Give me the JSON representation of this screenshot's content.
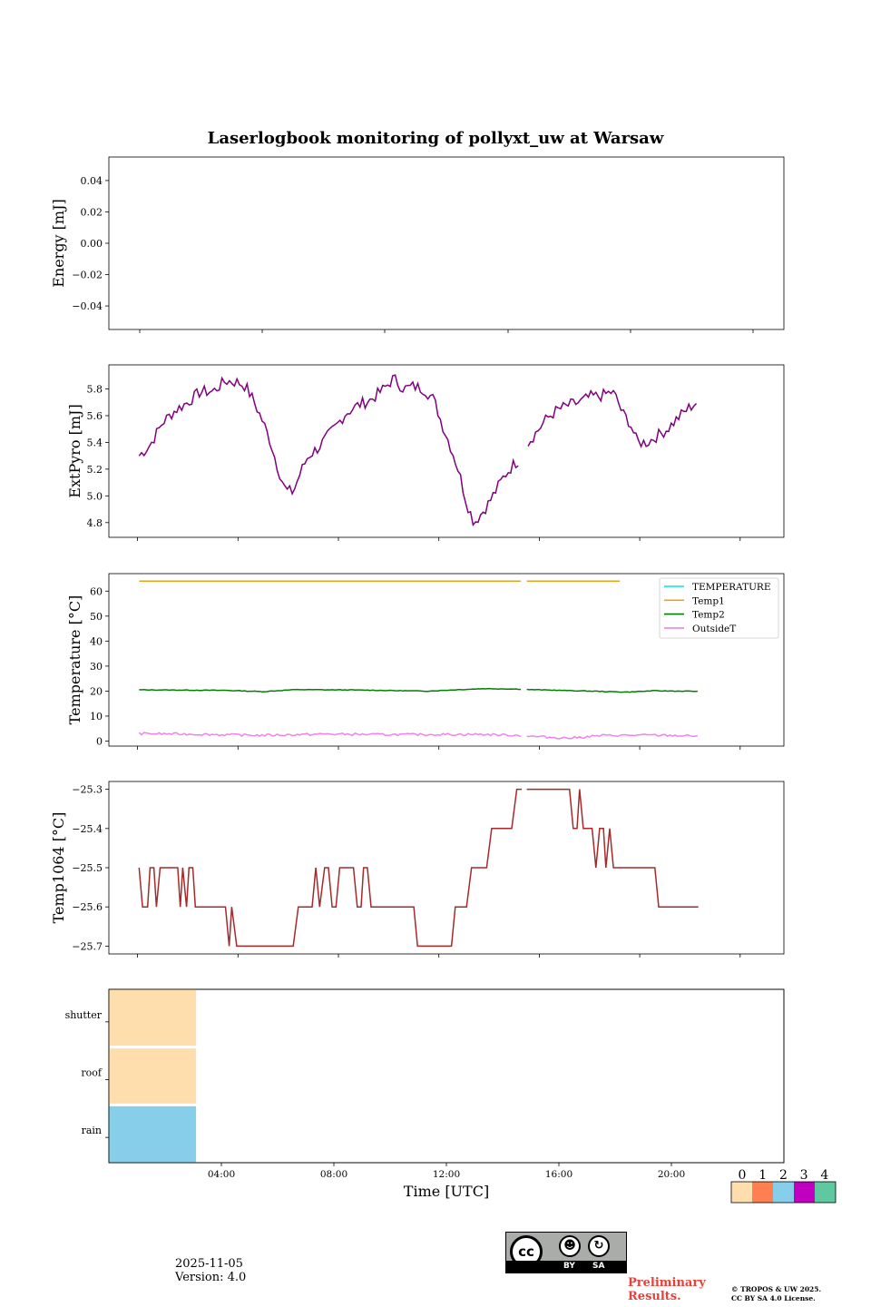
{
  "title": "Laserlogbook monitoring of pollyxt_uw at Warsaw",
  "footer": {
    "date": "2025-11-05",
    "version": "Version: 4.0",
    "preliminary": "Preliminary Results.",
    "copyright_line1": "© TROPOS & UW 2025.",
    "copyright_line2": "CC BY SA 4.0 License.",
    "license_icon": "cc-by-sa-icon",
    "license_cc": "cc",
    "license_by": "BY",
    "license_sa": "SA"
  },
  "chart_data": [
    {
      "type": "line",
      "id": "energy",
      "ylabel": "Energy [mJ]",
      "ylim": [
        -0.055,
        0.055
      ],
      "yticks": [
        0.04,
        0.02,
        0.0,
        -0.02,
        -0.04
      ],
      "ytick_labels": [
        "0.04",
        "0.02",
        "0.00",
        "−0.02",
        "−0.04"
      ],
      "series": []
    },
    {
      "type": "line",
      "id": "extpyro",
      "ylabel": "ExtPyro [mJ]",
      "ylim": [
        4.69,
        5.98
      ],
      "yticks": [
        5.8,
        5.6,
        5.4,
        5.2,
        5.0,
        4.8
      ],
      "ytick_labels": [
        "5.8",
        "5.6",
        "5.4",
        "5.2",
        "5.0",
        "4.8"
      ],
      "series": [
        {
          "name": "ExtPyro",
          "color": "#800080",
          "segments": [
            {
              "x_hours": [
                1.06,
                23.33
              ],
              "knots": [
                [
                  1.06,
                  5.3
                ],
                [
                  1.5,
                  5.38
                ],
                [
                  2.0,
                  5.55
                ],
                [
                  2.5,
                  5.64
                ],
                [
                  3.0,
                  5.7
                ],
                [
                  3.5,
                  5.78
                ],
                [
                  4.0,
                  5.78
                ],
                [
                  4.5,
                  5.86
                ],
                [
                  5.0,
                  5.85
                ],
                [
                  5.3,
                  5.82
                ],
                [
                  5.6,
                  5.72
                ],
                [
                  6.0,
                  5.55
                ],
                [
                  6.3,
                  5.4
                ],
                [
                  6.6,
                  5.2
                ],
                [
                  6.9,
                  5.04
                ],
                [
                  7.2,
                  5.03
                ],
                [
                  7.5,
                  5.18
                ],
                [
                  7.8,
                  5.3
                ],
                [
                  8.2,
                  5.36
                ],
                [
                  8.5,
                  5.43
                ],
                [
                  8.9,
                  5.52
                ],
                [
                  9.3,
                  5.62
                ],
                [
                  9.8,
                  5.68
                ],
                [
                  10.3,
                  5.72
                ],
                [
                  10.8,
                  5.8
                ],
                [
                  11.2,
                  5.88
                ],
                [
                  11.6,
                  5.8
                ],
                [
                  12.0,
                  5.82
                ],
                [
                  12.4,
                  5.8
                ],
                [
                  12.8,
                  5.72
                ],
                [
                  13.1,
                  5.55
                ],
                [
                  13.5,
                  5.35
                ],
                [
                  13.8,
                  5.18
                ],
                [
                  14.1,
                  4.95
                ],
                [
                  14.4,
                  4.8
                ],
                [
                  14.7,
                  4.87
                ],
                [
                  15.0,
                  4.95
                ],
                [
                  15.3,
                  5.05
                ],
                [
                  15.6,
                  5.15
                ],
                [
                  16.0,
                  5.24
                ],
                [
                  16.2,
                  5.27
                ]
              ]
            },
            {
              "knots": [
                [
                  16.55,
                  5.4
                ],
                [
                  16.9,
                  5.48
                ],
                [
                  17.3,
                  5.58
                ],
                [
                  17.7,
                  5.64
                ],
                [
                  18.2,
                  5.68
                ],
                [
                  18.6,
                  5.7
                ],
                [
                  19.0,
                  5.74
                ],
                [
                  19.5,
                  5.75
                ],
                [
                  19.9,
                  5.78
                ],
                [
                  20.1,
                  5.72
                ],
                [
                  20.3,
                  5.62
                ],
                [
                  20.6,
                  5.55
                ],
                [
                  20.9,
                  5.4
                ],
                [
                  21.3,
                  5.4
                ],
                [
                  21.7,
                  5.45
                ],
                [
                  22.1,
                  5.5
                ],
                [
                  22.5,
                  5.58
                ],
                [
                  22.9,
                  5.65
                ],
                [
                  23.33,
                  5.71
                ]
              ]
            }
          ]
        }
      ]
    },
    {
      "type": "line",
      "id": "temperature",
      "ylabel": "Temperature [°C]",
      "ylim": [
        -2,
        67
      ],
      "yticks": [
        60,
        50,
        40,
        30,
        20,
        10,
        0
      ],
      "ytick_labels": [
        "60",
        "50",
        "40",
        "30",
        "20",
        "10",
        "0"
      ],
      "legend_position": "top-right",
      "series": [
        {
          "name": "TEMPERATURE",
          "color": "#00e5e5",
          "values": []
        },
        {
          "name": "Temp1",
          "color": "#e8a317",
          "gap": [
            16.3,
            16.5
          ],
          "range": [
            1.06,
            20.2
          ],
          "value": 64
        },
        {
          "name": "Temp2",
          "color": "#007f00",
          "gap": [
            16.3,
            16.5
          ],
          "range": [
            1.06,
            23.33
          ],
          "knots": [
            [
              1.06,
              20.5
            ],
            [
              4.5,
              20.3
            ],
            [
              6.0,
              19.8
            ],
            [
              7.3,
              20.6
            ],
            [
              10.0,
              20.4
            ],
            [
              12.5,
              20.0
            ],
            [
              14.8,
              21.0
            ],
            [
              16.2,
              20.8
            ],
            [
              16.6,
              20.6
            ],
            [
              19.0,
              20.0
            ],
            [
              20.5,
              19.6
            ],
            [
              21.5,
              20.1
            ],
            [
              23.33,
              19.9
            ]
          ]
        },
        {
          "name": "OutsideT",
          "color": "#ee82ee",
          "gap": [
            16.3,
            16.5
          ],
          "range": [
            1.06,
            23.33
          ],
          "knots": [
            [
              1.06,
              3.0
            ],
            [
              3.0,
              2.8
            ],
            [
              6.0,
              2.3
            ],
            [
              8.5,
              2.8
            ],
            [
              11.0,
              2.6
            ],
            [
              14.5,
              2.7
            ],
            [
              16.2,
              2.3
            ],
            [
              16.6,
              1.9
            ],
            [
              18.2,
              1.2
            ],
            [
              19.5,
              2.2
            ],
            [
              21.5,
              2.4
            ],
            [
              23.33,
              2.0
            ]
          ]
        }
      ]
    },
    {
      "type": "line",
      "id": "temp1064",
      "ylabel": "Temp1064 [°C]",
      "ylim": [
        -25.72,
        -25.28
      ],
      "yticks": [
        -25.3,
        -25.4,
        -25.5,
        -25.6,
        -25.7
      ],
      "ytick_labels": [
        "−25.3",
        "−25.4",
        "−25.5",
        "−25.6",
        "−25.7"
      ],
      "series": [
        {
          "name": "Temp1064",
          "color": "#a52a2a",
          "segments": [
            {
              "knots": [
                [
                  1.06,
                  -25.5
                ],
                [
                  1.2,
                  -25.6
                ],
                [
                  1.4,
                  -25.6
                ],
                [
                  1.5,
                  -25.5
                ],
                [
                  1.65,
                  -25.5
                ],
                [
                  1.75,
                  -25.6
                ],
                [
                  1.9,
                  -25.5
                ],
                [
                  2.6,
                  -25.5
                ],
                [
                  2.7,
                  -25.6
                ],
                [
                  2.8,
                  -25.5
                ],
                [
                  2.95,
                  -25.6
                ],
                [
                  3.05,
                  -25.5
                ],
                [
                  3.2,
                  -25.5
                ],
                [
                  3.3,
                  -25.6
                ],
                [
                  4.5,
                  -25.6
                ],
                [
                  4.65,
                  -25.7
                ],
                [
                  4.75,
                  -25.6
                ],
                [
                  4.95,
                  -25.7
                ],
                [
                  7.2,
                  -25.7
                ],
                [
                  7.4,
                  -25.6
                ],
                [
                  7.95,
                  -25.6
                ],
                [
                  8.1,
                  -25.5
                ],
                [
                  8.25,
                  -25.6
                ],
                [
                  8.45,
                  -25.5
                ],
                [
                  8.6,
                  -25.5
                ],
                [
                  8.75,
                  -25.6
                ],
                [
                  8.9,
                  -25.6
                ],
                [
                  9.05,
                  -25.5
                ],
                [
                  9.6,
                  -25.5
                ],
                [
                  9.75,
                  -25.6
                ],
                [
                  9.9,
                  -25.6
                ],
                [
                  10.0,
                  -25.5
                ],
                [
                  10.15,
                  -25.5
                ],
                [
                  10.3,
                  -25.6
                ],
                [
                  12.0,
                  -25.6
                ],
                [
                  12.15,
                  -25.7
                ],
                [
                  13.5,
                  -25.7
                ],
                [
                  13.65,
                  -25.6
                ],
                [
                  14.1,
                  -25.6
                ],
                [
                  14.3,
                  -25.5
                ],
                [
                  14.9,
                  -25.5
                ],
                [
                  15.1,
                  -25.4
                ],
                [
                  15.9,
                  -25.4
                ],
                [
                  16.1,
                  -25.3
                ],
                [
                  16.3,
                  -25.3
                ]
              ]
            },
            {
              "knots": [
                [
                  16.5,
                  -25.3
                ],
                [
                  18.2,
                  -25.3
                ],
                [
                  18.35,
                  -25.4
                ],
                [
                  18.5,
                  -25.4
                ],
                [
                  18.6,
                  -25.3
                ],
                [
                  18.75,
                  -25.4
                ],
                [
                  19.1,
                  -25.4
                ],
                [
                  19.25,
                  -25.5
                ],
                [
                  19.4,
                  -25.4
                ],
                [
                  19.55,
                  -25.4
                ],
                [
                  19.65,
                  -25.5
                ],
                [
                  19.8,
                  -25.4
                ],
                [
                  19.95,
                  -25.5
                ],
                [
                  21.6,
                  -25.5
                ],
                [
                  21.75,
                  -25.6
                ],
                [
                  23.33,
                  -25.6
                ]
              ]
            }
          ]
        }
      ]
    },
    {
      "type": "heatmap",
      "id": "status",
      "xlabel": "Time [UTC]",
      "xlim_hours": [
        0,
        24
      ],
      "xticks": [
        "04:00",
        "08:00",
        "12:00",
        "16:00",
        "20:00"
      ],
      "xtick_hours": [
        4,
        8,
        12,
        16,
        20
      ],
      "rows": [
        {
          "label": "shutter",
          "blocks": [
            {
              "start": 0,
              "end": 3.1,
              "code": 0
            }
          ]
        },
        {
          "label": "roof",
          "blocks": [
            {
              "start": 0,
              "end": 3.1,
              "code": 0
            }
          ]
        },
        {
          "label": "rain",
          "blocks": [
            {
              "start": 0,
              "end": 3.1,
              "code": 2
            }
          ]
        }
      ],
      "colorbar": {
        "ticks": [
          "0",
          "1",
          "2",
          "3",
          "4"
        ],
        "colors": [
          "#ffdead",
          "#ff7f50",
          "#87ceeb",
          "#c000c0",
          "#5fc8a0"
        ]
      }
    }
  ]
}
